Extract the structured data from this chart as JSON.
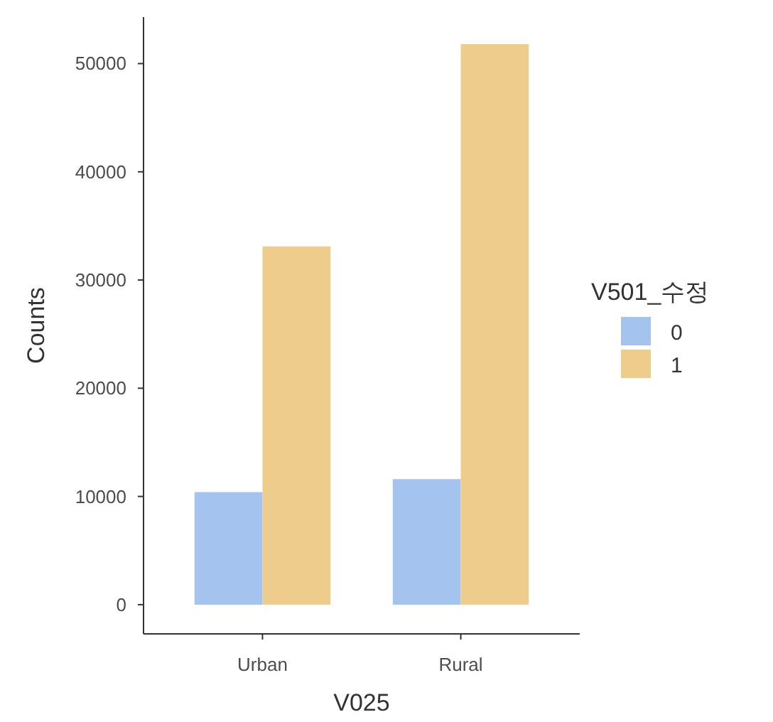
{
  "chart_data": {
    "type": "bar",
    "xlabel": "V025",
    "ylabel": "Counts",
    "legend_title": "V501_수정",
    "categories": [
      "Urban",
      "Rural"
    ],
    "series": [
      {
        "name": "0",
        "color": "#a4c3ef",
        "values": [
          10400,
          11600
        ]
      },
      {
        "name": "1",
        "color": "#edcc8c",
        "values": [
          33100,
          51800
        ]
      }
    ],
    "ylim": [
      -2700,
      54300
    ],
    "yticks": [
      0,
      10000,
      20000,
      30000,
      40000,
      50000
    ],
    "grid": false,
    "legend": "right"
  }
}
